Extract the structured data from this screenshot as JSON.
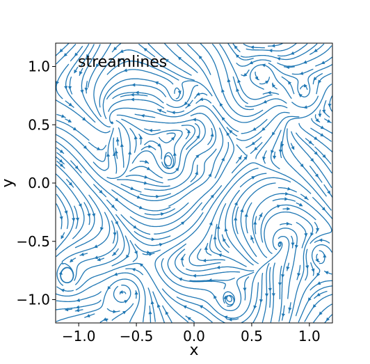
{
  "chart_data": {
    "type": "streamplot",
    "annotation": "streamlines",
    "xlabel": "x",
    "ylabel": "y",
    "xlim": [
      -1.2,
      1.2
    ],
    "ylim": [
      -1.2,
      1.2
    ],
    "xticks": [
      -1.0,
      -0.5,
      0.0,
      0.5,
      1.0
    ],
    "xtick_labels": [
      "−1.0",
      "−0.5",
      "0.0",
      "0.5",
      "1.0"
    ],
    "yticks": [
      -1.0,
      -0.5,
      0.0,
      0.5,
      1.0
    ],
    "ytick_labels": [
      "−1.0",
      "−0.5",
      "0.0",
      "0.5",
      "1.0"
    ],
    "line_color": "#1f77b4",
    "grid": false,
    "field_features": {
      "central_vortex": {
        "x": -0.02,
        "y": 0.12,
        "direction": "counterclockwise"
      },
      "small_vortices": [
        {
          "x": -0.18,
          "y": 0.12
        },
        {
          "x": 0.02,
          "y": 0.15
        },
        {
          "x": 0.07,
          "y": 0.08
        },
        {
          "x": -0.15,
          "y": 0.7
        },
        {
          "x": 0.6,
          "y": 0.99
        },
        {
          "x": -1.1,
          "y": -0.85
        },
        {
          "x": -0.6,
          "y": -0.94
        },
        {
          "x": 0.3,
          "y": -1.05
        },
        {
          "x": 1.08,
          "y": -0.6
        },
        {
          "x": 0.95,
          "y": 0.75
        }
      ]
    }
  }
}
